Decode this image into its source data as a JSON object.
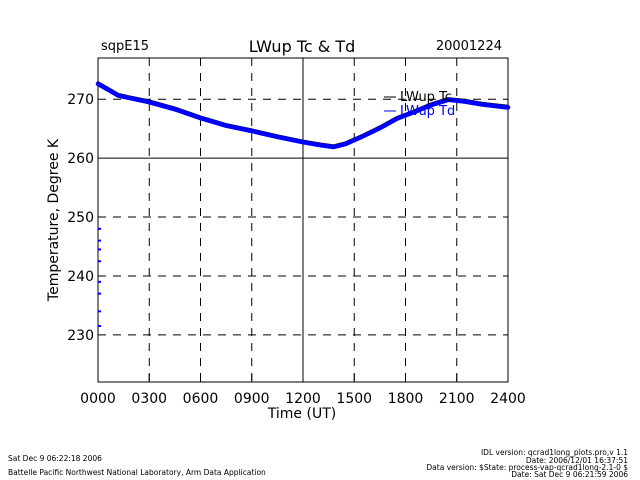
{
  "header": {
    "site": "sqpE15",
    "title": "LWup Tc & Td",
    "date": "20001224"
  },
  "chart_data": {
    "type": "line",
    "title": "LWup Tc & Td",
    "xlabel": "Time (UT)",
    "ylabel": "Temperature, Degree K",
    "xlim": [
      0,
      2400
    ],
    "ylim": [
      222,
      277
    ],
    "x_ticks": [
      0,
      300,
      600,
      900,
      1200,
      1500,
      1800,
      2100,
      2400
    ],
    "x_tick_labels": [
      "0000",
      "0300",
      "0600",
      "0900",
      "1200",
      "1500",
      "1800",
      "2100",
      "2400"
    ],
    "y_ticks": [
      230,
      240,
      250,
      260,
      270
    ],
    "y_tick_labels": [
      "230",
      "240",
      "250",
      "260",
      "270"
    ],
    "grid": true,
    "legend_position": "top-right",
    "series": [
      {
        "name": "LWup Tc",
        "color": "#000000",
        "x": [
          0,
          60,
          120,
          200,
          300,
          450,
          600,
          750,
          900,
          1050,
          1200,
          1300,
          1380,
          1450,
          1550,
          1650,
          1750,
          1850,
          1950,
          2050,
          2150,
          2250,
          2400
        ],
        "y": [
          272.8,
          271.8,
          270.8,
          270.3,
          269.7,
          268.5,
          267.0,
          265.7,
          264.8,
          263.8,
          262.9,
          262.4,
          262.1,
          262.6,
          263.9,
          265.3,
          266.9,
          268.0,
          269.2,
          270.1,
          269.8,
          269.3,
          268.8
        ]
      },
      {
        "name": "LWup Td",
        "color": "#0000ff",
        "x": [
          0,
          60,
          120,
          200,
          300,
          450,
          600,
          750,
          900,
          1050,
          1200,
          1300,
          1380,
          1450,
          1550,
          1650,
          1750,
          1850,
          1950,
          2050,
          2150,
          2250,
          2400
        ],
        "y": [
          272.6,
          271.6,
          270.6,
          270.1,
          269.5,
          268.3,
          266.8,
          265.5,
          264.6,
          263.6,
          262.7,
          262.2,
          261.9,
          262.4,
          263.7,
          265.1,
          266.7,
          267.8,
          269.0,
          269.9,
          269.6,
          269.1,
          268.6
        ]
      }
    ],
    "td_edge_points": {
      "x": [
        0,
        0,
        0,
        0,
        0,
        0,
        0,
        0
      ],
      "y": [
        248,
        246,
        244.5,
        242.5,
        239,
        237,
        234,
        231.5
      ]
    }
  },
  "footer": {
    "left_line1": "Sat Dec  9 06:22:18 2006",
    "left_line2": "Battelle Pacific Northwest National Laboratory, Arm Data Application",
    "right_line1": "IDL version: qcrad1long_plots.pro,v 1.1",
    "right_line2": "Date: 2006/12/01 16:37:51",
    "right_line3": "Data version: $State: process-vap-qcrad1long-2.1-0 $",
    "right_line4": "Date: Sat Dec  9 06:21:59 2006"
  }
}
